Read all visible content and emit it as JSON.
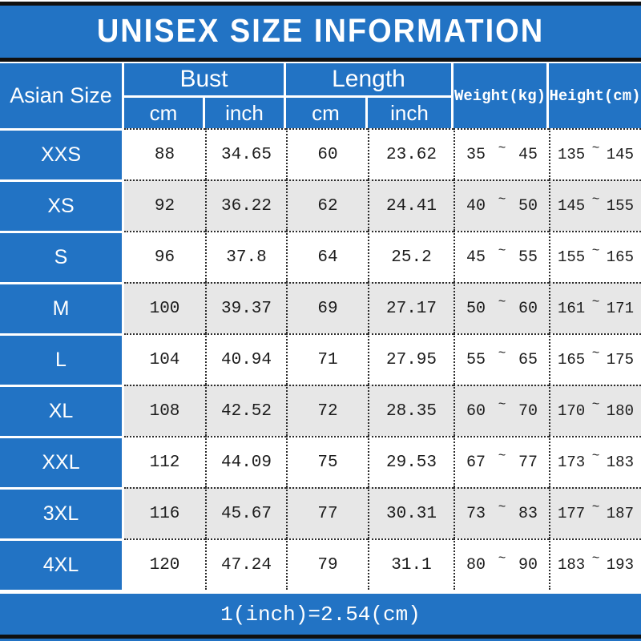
{
  "title": "UNISEX SIZE INFORMATION",
  "footer": {
    "note": "1(inch)=2.54(cm)"
  },
  "colors": {
    "accent_blue": "#2273c4",
    "row_alt_gray": "#e7e7e7",
    "border_dark": "#2b2b2b",
    "bar_black": "#101010",
    "text_white": "#ffffff"
  },
  "table": {
    "tilde": "~",
    "headers": {
      "size": "Asian Size",
      "bust": "Bust",
      "length": "Length",
      "weight": "Weight(kg)",
      "height": "Height(cm)",
      "unit_cm": "cm",
      "unit_inch": "inch"
    },
    "rows": [
      {
        "size": "XXS",
        "bust_cm": "88",
        "bust_inch": "34.65",
        "length_cm": "60",
        "length_inch": "23.62",
        "weight_min": "35",
        "weight_max": "45",
        "height_min": "135",
        "height_max": "145"
      },
      {
        "size": "XS",
        "bust_cm": "92",
        "bust_inch": "36.22",
        "length_cm": "62",
        "length_inch": "24.41",
        "weight_min": "40",
        "weight_max": "50",
        "height_min": "145",
        "height_max": "155"
      },
      {
        "size": "S",
        "bust_cm": "96",
        "bust_inch": "37.8",
        "length_cm": "64",
        "length_inch": "25.2",
        "weight_min": "45",
        "weight_max": "55",
        "height_min": "155",
        "height_max": "165"
      },
      {
        "size": "M",
        "bust_cm": "100",
        "bust_inch": "39.37",
        "length_cm": "69",
        "length_inch": "27.17",
        "weight_min": "50",
        "weight_max": "60",
        "height_min": "161",
        "height_max": "171"
      },
      {
        "size": "L",
        "bust_cm": "104",
        "bust_inch": "40.94",
        "length_cm": "71",
        "length_inch": "27.95",
        "weight_min": "55",
        "weight_max": "65",
        "height_min": "165",
        "height_max": "175"
      },
      {
        "size": "XL",
        "bust_cm": "108",
        "bust_inch": "42.52",
        "length_cm": "72",
        "length_inch": "28.35",
        "weight_min": "60",
        "weight_max": "70",
        "height_min": "170",
        "height_max": "180"
      },
      {
        "size": "XXL",
        "bust_cm": "112",
        "bust_inch": "44.09",
        "length_cm": "75",
        "length_inch": "29.53",
        "weight_min": "67",
        "weight_max": "77",
        "height_min": "173",
        "height_max": "183"
      },
      {
        "size": "3XL",
        "bust_cm": "116",
        "bust_inch": "45.67",
        "length_cm": "77",
        "length_inch": "30.31",
        "weight_min": "73",
        "weight_max": "83",
        "height_min": "177",
        "height_max": "187"
      },
      {
        "size": "4XL",
        "bust_cm": "120",
        "bust_inch": "47.24",
        "length_cm": "79",
        "length_inch": "31.1",
        "weight_min": "80",
        "weight_max": "90",
        "height_min": "183",
        "height_max": "193"
      }
    ]
  },
  "chart_data": {
    "type": "table",
    "title": "UNISEX SIZE INFORMATION",
    "columns": [
      "Asian Size",
      "Bust cm",
      "Bust inch",
      "Length cm",
      "Length inch",
      "Weight(kg)",
      "Height(cm)"
    ],
    "rows": [
      [
        "XXS",
        88,
        34.65,
        60,
        23.62,
        "35~45",
        "135~145"
      ],
      [
        "XS",
        92,
        36.22,
        62,
        24.41,
        "40~50",
        "145~155"
      ],
      [
        "S",
        96,
        37.8,
        64,
        25.2,
        "45~55",
        "155~165"
      ],
      [
        "M",
        100,
        39.37,
        69,
        27.17,
        "50~60",
        "161~171"
      ],
      [
        "L",
        104,
        40.94,
        71,
        27.95,
        "55~65",
        "165~175"
      ],
      [
        "XL",
        108,
        42.52,
        72,
        28.35,
        "60~70",
        "170~180"
      ],
      [
        "XXL",
        112,
        44.09,
        75,
        29.53,
        "67~77",
        "173~183"
      ],
      [
        "3XL",
        116,
        45.67,
        77,
        30.31,
        "73~83",
        "177~187"
      ],
      [
        "4XL",
        120,
        47.24,
        79,
        31.1,
        "80~90",
        "183~193"
      ]
    ],
    "annotations": [
      "1(inch)=2.54(cm)"
    ]
  }
}
